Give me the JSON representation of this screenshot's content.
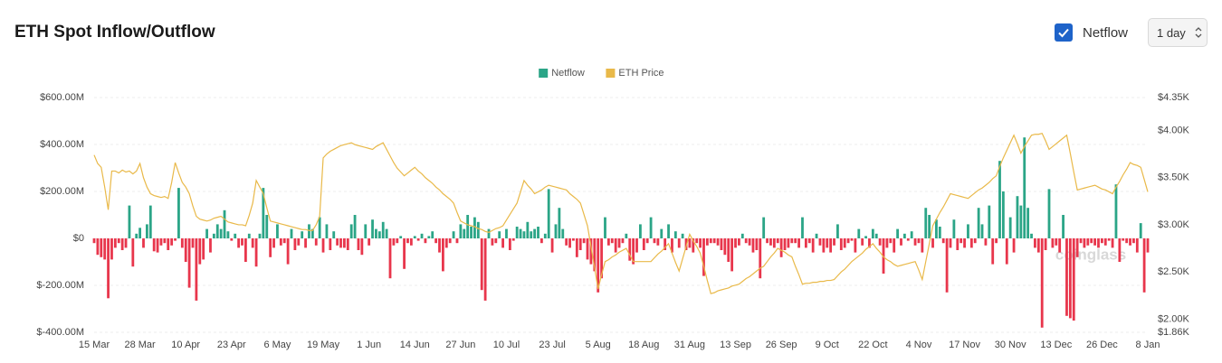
{
  "header": {
    "title": "ETH Spot Inflow/Outflow",
    "checkbox_label": "Netflow",
    "interval": "1 day"
  },
  "chart_data": {
    "type": "bar-line",
    "watermark": "coinglass",
    "categories": [
      "15 Mar",
      null,
      null,
      null,
      null,
      null,
      null,
      null,
      null,
      null,
      null,
      null,
      null,
      "28 Mar",
      null,
      null,
      null,
      null,
      null,
      null,
      null,
      null,
      null,
      null,
      null,
      null,
      "10 Apr",
      null,
      null,
      null,
      null,
      null,
      null,
      null,
      null,
      null,
      null,
      null,
      null,
      "23 Apr",
      null,
      null,
      null,
      null,
      null,
      null,
      null,
      null,
      null,
      null,
      null,
      null,
      "6 May",
      null,
      null,
      null,
      null,
      null,
      null,
      null,
      null,
      null,
      null,
      null,
      null,
      "19 May",
      null,
      null,
      null,
      null,
      null,
      null,
      null,
      null,
      null,
      null,
      null,
      null,
      "1 Jun",
      null,
      null,
      null,
      null,
      null,
      null,
      null,
      null,
      null,
      null,
      null,
      null,
      "14 Jun",
      null,
      null,
      null,
      null,
      null,
      null,
      null,
      null,
      null,
      null,
      null,
      null,
      "27 Jun",
      null,
      null,
      null,
      null,
      null,
      null,
      null,
      null,
      null,
      null,
      null,
      null,
      "10 Jul",
      null,
      null,
      null,
      null,
      null,
      null,
      null,
      null,
      null,
      null,
      null,
      null,
      "23 Jul",
      null,
      null,
      null,
      null,
      null,
      null,
      null,
      null,
      null,
      null,
      null,
      null,
      "5 Aug",
      null,
      null,
      null,
      null,
      null,
      null,
      null,
      null,
      null,
      null,
      null,
      null,
      "18 Aug",
      null,
      null,
      null,
      null,
      null,
      null,
      null,
      null,
      null,
      null,
      null,
      null,
      "31 Aug",
      null,
      null,
      null,
      null,
      null,
      null,
      null,
      null,
      null,
      null,
      null,
      null,
      "13 Sep",
      null,
      null,
      null,
      null,
      null,
      null,
      null,
      null,
      null,
      null,
      null,
      null,
      "26 Sep",
      null,
      null,
      null,
      null,
      null,
      null,
      null,
      null,
      null,
      null,
      null,
      null,
      "9 Oct",
      null,
      null,
      null,
      null,
      null,
      null,
      null,
      null,
      null,
      null,
      null,
      null,
      "22 Oct",
      null,
      null,
      null,
      null,
      null,
      null,
      null,
      null,
      null,
      null,
      null,
      null,
      "4 Nov",
      null,
      null,
      null,
      null,
      null,
      null,
      null,
      null,
      null,
      null,
      null,
      null,
      "17 Nov",
      null,
      null,
      null,
      null,
      null,
      null,
      null,
      null,
      null,
      null,
      null,
      null,
      "30 Nov",
      null,
      null,
      null,
      null,
      null,
      null,
      null,
      null,
      null,
      null,
      null,
      null,
      "13 Dec",
      null,
      null,
      null,
      null,
      null,
      null,
      null,
      null,
      null,
      null,
      null,
      null,
      "26 Dec",
      null,
      null,
      null,
      null,
      null,
      null,
      null,
      null,
      null,
      null,
      null,
      null,
      "8 Jan"
    ],
    "ylim": [
      -400,
      600
    ],
    "yticks": [
      {
        "value": -400,
        "label": "$-400.00M"
      },
      {
        "value": -200,
        "label": "$-200.00M"
      },
      {
        "value": 0,
        "label": "$0"
      },
      {
        "value": 200,
        "label": "$200.00M"
      },
      {
        "value": 400,
        "label": "$400.00M"
      },
      {
        "value": 600,
        "label": "$600.00M"
      }
    ],
    "y2lim": [
      1.86,
      4.35
    ],
    "y2ticks": [
      {
        "value": 1.86,
        "label": "$1.86K"
      },
      {
        "value": 2.0,
        "label": "$2.00K"
      },
      {
        "value": 2.5,
        "label": "$2.50K"
      },
      {
        "value": 3.0,
        "label": "$3.00K"
      },
      {
        "value": 3.5,
        "label": "$3.50K"
      },
      {
        "value": 4.0,
        "label": "$4.00K"
      },
      {
        "value": 4.35,
        "label": "$4.35K"
      }
    ],
    "grid": true,
    "legend": "top",
    "series": [
      {
        "name": "Netflow",
        "type": "bar",
        "color": "#2ba587",
        "negative_color": "#e8364c",
        "values": [
          -20,
          -70,
          -80,
          -90,
          -255,
          -90,
          -40,
          -20,
          -50,
          -40,
          140,
          -120,
          20,
          45,
          -40,
          60,
          140,
          -55,
          -60,
          -30,
          -20,
          -50,
          -30,
          -10,
          215,
          -40,
          -100,
          -210,
          -40,
          -265,
          -110,
          -90,
          40,
          -60,
          20,
          60,
          40,
          120,
          30,
          -10,
          20,
          -40,
          -30,
          -100,
          20,
          -40,
          -120,
          20,
          215,
          100,
          -80,
          -40,
          60,
          -30,
          -20,
          -110,
          40,
          -50,
          -30,
          30,
          -40,
          60,
          40,
          -30,
          90,
          -60,
          60,
          -50,
          30,
          -30,
          -40,
          -40,
          -50,
          60,
          100,
          -50,
          -70,
          60,
          -30,
          80,
          40,
          30,
          70,
          40,
          -170,
          -30,
          -20,
          10,
          -130,
          -20,
          -30,
          10,
          -10,
          20,
          -20,
          10,
          30,
          -20,
          -60,
          -140,
          -40,
          -20,
          30,
          -20,
          60,
          40,
          100,
          50,
          90,
          70,
          -220,
          -265,
          40,
          -30,
          -20,
          30,
          -40,
          40,
          -50,
          -10,
          50,
          40,
          30,
          70,
          30,
          40,
          50,
          -20,
          20,
          210,
          -60,
          60,
          130,
          40,
          -30,
          -40,
          -10,
          -80,
          -50,
          -20,
          -90,
          -110,
          -140,
          -230,
          -170,
          90,
          -30,
          -20,
          -60,
          -40,
          -20,
          20,
          -95,
          -110,
          -60,
          60,
          -50,
          -20,
          90,
          -20,
          -30,
          40,
          -50,
          60,
          -60,
          30,
          -40,
          20,
          -50,
          -40,
          -60,
          -20,
          -40,
          -160,
          -30,
          -20,
          -20,
          -30,
          -50,
          -70,
          -100,
          -140,
          -40,
          -30,
          20,
          -20,
          -30,
          -60,
          -50,
          -170,
          90,
          -20,
          -30,
          -40,
          -20,
          -80,
          -50,
          -40,
          -20,
          -20,
          -40,
          90,
          -40,
          -20,
          -60,
          20,
          -30,
          -60,
          -40,
          -60,
          -30,
          60,
          -50,
          -40,
          -20,
          -10,
          -60,
          40,
          -30,
          10,
          -40,
          40,
          20,
          -30,
          -150,
          -40,
          -20,
          -60,
          40,
          -30,
          20,
          -10,
          30,
          -30,
          -20,
          -60,
          130,
          100,
          -40,
          80,
          50,
          -20,
          -230,
          -40,
          80,
          -50,
          -20,
          -40,
          60,
          -40,
          -20,
          130,
          60,
          -30,
          140,
          -110,
          -20,
          330,
          200,
          -110,
          90,
          -60,
          180,
          140,
          430,
          130,
          20,
          -40,
          -60,
          -380,
          -50,
          210,
          -40,
          -30,
          -60,
          100,
          -330,
          -340,
          -350,
          -80,
          -20,
          -40,
          -30,
          -20,
          -30,
          -40,
          -20,
          -30,
          -10,
          -40,
          230,
          -100,
          -10,
          -20,
          -30,
          -20,
          -60,
          65,
          -230,
          -60
        ]
      },
      {
        "name": "ETH Price",
        "type": "line",
        "axis": "y2",
        "color": "#e9b949",
        "values": [
          3.74,
          3.65,
          3.61,
          3.4,
          3.16,
          3.57,
          3.57,
          3.55,
          3.58,
          3.56,
          3.57,
          3.54,
          3.57,
          3.65,
          3.5,
          3.4,
          3.33,
          3.31,
          3.3,
          3.29,
          3.3,
          3.28,
          3.45,
          3.66,
          3.55,
          3.45,
          3.4,
          3.33,
          3.2,
          3.09,
          3.06,
          3.05,
          3.04,
          3.05,
          3.07,
          3.08,
          3.09,
          3.06,
          3.03,
          3.02,
          3.01,
          3.0,
          3.0,
          2.99,
          3.1,
          3.23,
          3.47,
          3.4,
          3.33,
          3.18,
          3.04,
          3.03,
          3.02,
          3.01,
          3.0,
          2.99,
          2.98,
          2.97,
          2.96,
          2.95,
          2.95,
          2.94,
          2.94,
          3.0,
          3.09,
          3.71,
          3.75,
          3.78,
          3.8,
          3.82,
          3.84,
          3.85,
          3.86,
          3.87,
          3.85,
          3.84,
          3.83,
          3.82,
          3.81,
          3.8,
          3.83,
          3.85,
          3.87,
          3.8,
          3.73,
          3.66,
          3.6,
          3.56,
          3.52,
          3.55,
          3.58,
          3.61,
          3.57,
          3.54,
          3.5,
          3.47,
          3.44,
          3.4,
          3.37,
          3.33,
          3.3,
          3.27,
          3.23,
          3.13,
          3.04,
          3.02,
          3.0,
          2.99,
          2.98,
          2.96,
          2.95,
          2.93,
          2.92,
          2.94,
          2.96,
          2.97,
          2.99,
          3.05,
          3.11,
          3.17,
          3.23,
          3.35,
          3.47,
          3.42,
          3.38,
          3.33,
          3.35,
          3.37,
          3.4,
          3.42,
          3.41,
          3.4,
          3.39,
          3.38,
          3.37,
          3.33,
          3.3,
          3.27,
          3.23,
          3.11,
          2.99,
          2.77,
          2.55,
          2.32,
          2.47,
          2.61,
          2.63,
          2.66,
          2.68,
          2.71,
          2.73,
          2.75,
          2.68,
          2.61,
          2.61,
          2.61,
          2.61,
          2.61,
          2.61,
          2.65,
          2.69,
          2.72,
          2.76,
          2.8,
          2.7,
          2.6,
          2.51,
          2.64,
          2.77,
          2.9,
          2.83,
          2.77,
          2.7,
          2.56,
          2.41,
          2.27,
          2.28,
          2.3,
          2.31,
          2.32,
          2.33,
          2.35,
          2.36,
          2.37,
          2.4,
          2.43,
          2.45,
          2.48,
          2.51,
          2.54,
          2.56,
          2.61,
          2.66,
          2.7,
          2.75,
          2.73,
          2.71,
          2.68,
          2.66,
          2.56,
          2.47,
          2.37,
          2.38,
          2.38,
          2.39,
          2.39,
          2.4,
          2.4,
          2.41,
          2.41,
          2.42,
          2.46,
          2.5,
          2.53,
          2.57,
          2.61,
          2.64,
          2.67,
          2.7,
          2.74,
          2.77,
          2.8,
          2.75,
          2.71,
          2.66,
          2.63,
          2.61,
          2.58,
          2.56,
          2.57,
          2.58,
          2.59,
          2.6,
          2.61,
          2.52,
          2.42,
          2.61,
          2.8,
          2.99,
          3.06,
          3.13,
          3.19,
          3.26,
          3.33,
          3.32,
          3.31,
          3.3,
          3.29,
          3.28,
          3.31,
          3.34,
          3.37,
          3.39,
          3.42,
          3.45,
          3.49,
          3.52,
          3.62,
          3.71,
          3.79,
          3.87,
          3.95,
          3.86,
          3.76,
          3.83,
          3.89,
          3.95,
          3.96,
          3.96,
          3.97,
          3.89,
          3.8,
          3.83,
          3.86,
          3.89,
          3.92,
          3.95,
          3.76,
          3.56,
          3.37,
          3.38,
          3.39,
          3.4,
          3.41,
          3.42,
          3.4,
          3.38,
          3.37,
          3.35,
          3.33,
          3.4,
          3.46,
          3.53,
          3.59,
          3.66,
          3.64,
          3.63,
          3.61,
          3.48,
          3.35
        ]
      }
    ]
  }
}
